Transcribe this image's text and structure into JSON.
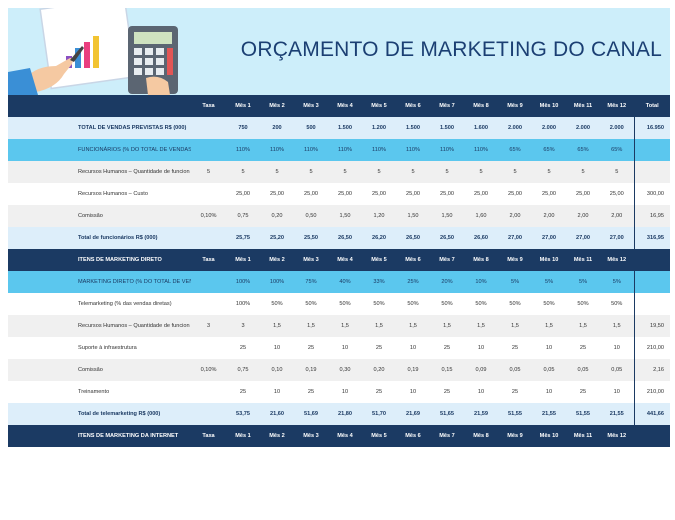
{
  "title": "ORÇAMENTO DE MARKETING DO CANAL",
  "months": [
    "Mês 1",
    "Mês 2",
    "Mês 3",
    "Mês 4",
    "Mês 5",
    "Mês 6",
    "Mês 7",
    "Mês 8",
    "Mês 9",
    "Mês 10",
    "Mês 11",
    "Mês 12"
  ],
  "taxa_label": "Taxa",
  "total_label": "Total",
  "header_icon": "calculator-chart-illustration",
  "colors": {
    "navy": "#1b3a63",
    "cyan": "#5bc7ee",
    "light": "#ddeefa",
    "header_bg": "#cdeefa"
  },
  "sec1": {
    "sales_label": "TOTAL DE VENDAS PREVISTAS R$ (000)",
    "sales": [
      "750",
      "200",
      "500",
      "1.500",
      "1.200",
      "1.500",
      "1.500",
      "1.600",
      "2.000",
      "2.000",
      "2.000",
      "2.000"
    ],
    "sales_total": "16.950",
    "staff_label": "FUNCIONÁRIOS (% DO TOTAL DE VENDAS)",
    "staff_pct": [
      "110%",
      "110%",
      "110%",
      "110%",
      "110%",
      "110%",
      "110%",
      "110%",
      "65%",
      "65%",
      "65%",
      "65%"
    ],
    "rows": [
      {
        "label": "Recursos Humanos – Quantidade de funcion",
        "taxa": "5",
        "values": [
          "5",
          "5",
          "5",
          "5",
          "5",
          "5",
          "5",
          "5",
          "5",
          "5",
          "5",
          "5"
        ],
        "total": ""
      },
      {
        "label": "Recursos Humanos – Custo",
        "taxa": "",
        "values": [
          "25,00",
          "25,00",
          "25,00",
          "25,00",
          "25,00",
          "25,00",
          "25,00",
          "25,00",
          "25,00",
          "25,00",
          "25,00",
          "25,00"
        ],
        "total": "300,00"
      },
      {
        "label": "Comissão",
        "taxa": "0,10%",
        "values": [
          "0,75",
          "0,20",
          "0,50",
          "1,50",
          "1,20",
          "1,50",
          "1,50",
          "1,60",
          "2,00",
          "2,00",
          "2,00",
          "2,00"
        ],
        "total": "16,95"
      }
    ],
    "total_label": "Total de funcionários R$ (000)",
    "totals": [
      "25,75",
      "25,20",
      "25,50",
      "26,50",
      "26,20",
      "26,50",
      "26,50",
      "26,60",
      "27,00",
      "27,00",
      "27,00",
      "27,00"
    ],
    "total_total": "316,95"
  },
  "sec2": {
    "header": "ITENS DE MARKETING DIRETO",
    "pct_label": "MARKETING DIRETO (% DO TOTAL DE VENDAS)",
    "pct": [
      "100%",
      "100%",
      "75%",
      "40%",
      "33%",
      "25%",
      "20%",
      "10%",
      "5%",
      "5%",
      "5%",
      "5%"
    ],
    "rows": [
      {
        "label": "Telemarketing (% das vendas diretas)",
        "taxa": "",
        "values": [
          "100%",
          "50%",
          "50%",
          "50%",
          "50%",
          "50%",
          "50%",
          "50%",
          "50%",
          "50%",
          "50%",
          "50%"
        ],
        "total": ""
      },
      {
        "label": "Recursos Humanos – Quantidade de funcion",
        "taxa": "3",
        "values": [
          "3",
          "1,5",
          "1,5",
          "1,5",
          "1,5",
          "1,5",
          "1,5",
          "1,5",
          "1,5",
          "1,5",
          "1,5",
          "1,5"
        ],
        "total": "19,50"
      },
      {
        "label": "Suporte à infraestrutura",
        "taxa": "",
        "values": [
          "25",
          "10",
          "25",
          "10",
          "25",
          "10",
          "25",
          "10",
          "25",
          "10",
          "25",
          "10"
        ],
        "total": "210,00"
      },
      {
        "label": "Comissão",
        "taxa": "0,10%",
        "values": [
          "0,75",
          "0,10",
          "0,19",
          "0,30",
          "0,20",
          "0,19",
          "0,15",
          "0,09",
          "0,05",
          "0,05",
          "0,05",
          "0,05"
        ],
        "total": "2,16"
      },
      {
        "label": "Treinamento",
        "taxa": "",
        "values": [
          "25",
          "10",
          "25",
          "10",
          "25",
          "10",
          "25",
          "10",
          "25",
          "10",
          "25",
          "10"
        ],
        "total": "210,00"
      }
    ],
    "total_label": "Total de telemarketing R$ (000)",
    "totals": [
      "53,75",
      "21,60",
      "51,69",
      "21,80",
      "51,70",
      "21,69",
      "51,65",
      "21,59",
      "51,55",
      "21,55",
      "51,55",
      "21,55"
    ],
    "total_total": "441,66"
  },
  "sec3": {
    "header": "ITENS DE MARKETING DA INTERNET"
  }
}
